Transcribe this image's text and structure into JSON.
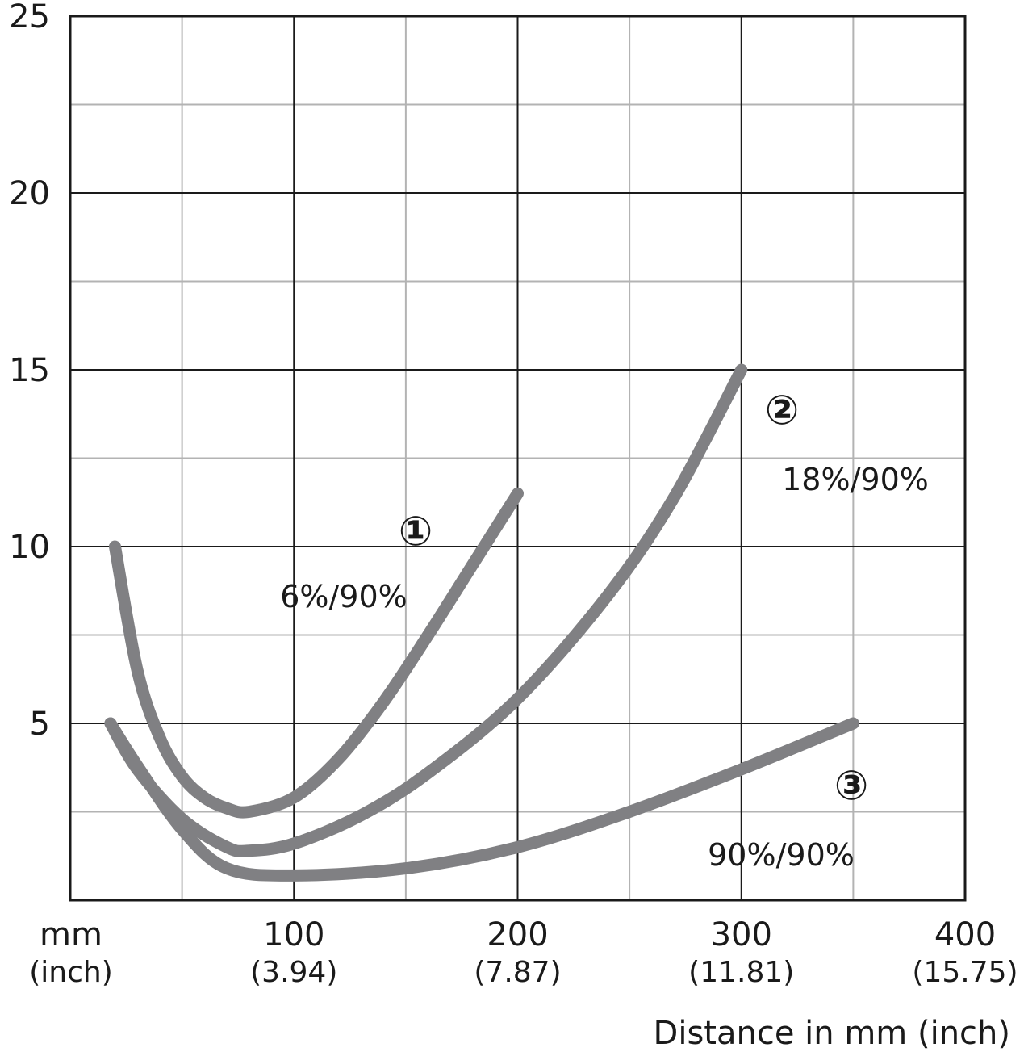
{
  "chart_data": {
    "type": "line",
    "title": "",
    "xlabel": "Distance in mm (inch)",
    "ylabel": "",
    "xlim": [
      0,
      400
    ],
    "ylim": [
      0,
      25
    ],
    "grid": true,
    "x_unit_labels": {
      "main": "mm",
      "sub": "(inch)"
    },
    "x_ticks": [
      {
        "value": 100,
        "label": "100",
        "sub": "(3.94)"
      },
      {
        "value": 200,
        "label": "200",
        "sub": "(7.87)"
      },
      {
        "value": 300,
        "label": "300",
        "sub": "(11.81)"
      },
      {
        "value": 400,
        "label": "400",
        "sub": "(15.75)"
      }
    ],
    "y_ticks": [
      {
        "value": 5,
        "label": "5"
      },
      {
        "value": 10,
        "label": "10"
      },
      {
        "value": 15,
        "label": "15"
      },
      {
        "value": 20,
        "label": "20"
      },
      {
        "value": 25,
        "label": "25"
      }
    ],
    "series_color": "#808083",
    "series": [
      {
        "name": "6%/90%",
        "marker": "①",
        "x": [
          20,
          30,
          40,
          50,
          60,
          70,
          80,
          100,
          120,
          140,
          160,
          180,
          200
        ],
        "y": [
          10,
          6.5,
          4.6,
          3.5,
          2.9,
          2.6,
          2.5,
          2.9,
          4.0,
          5.6,
          7.5,
          9.5,
          11.5
        ]
      },
      {
        "name": "18%/90%",
        "marker": "②",
        "x": [
          18,
          30,
          50,
          70,
          80,
          100,
          130,
          160,
          200,
          240,
          270,
          300
        ],
        "y": [
          5,
          3.7,
          2.3,
          1.5,
          1.4,
          1.6,
          2.4,
          3.6,
          5.7,
          8.6,
          11.4,
          15
        ]
      },
      {
        "name": "90%/90%",
        "marker": "③",
        "x": [
          18,
          30,
          50,
          70,
          100,
          150,
          200,
          250,
          300,
          350
        ],
        "y": [
          5,
          3.8,
          2.0,
          0.9,
          0.7,
          0.9,
          1.5,
          2.5,
          3.7,
          5
        ]
      }
    ],
    "annotations": [
      {
        "marker": "①",
        "label": "6%/90%"
      },
      {
        "marker": "②",
        "label": "18%/90%"
      },
      {
        "marker": "③",
        "label": "90%/90%"
      }
    ]
  }
}
